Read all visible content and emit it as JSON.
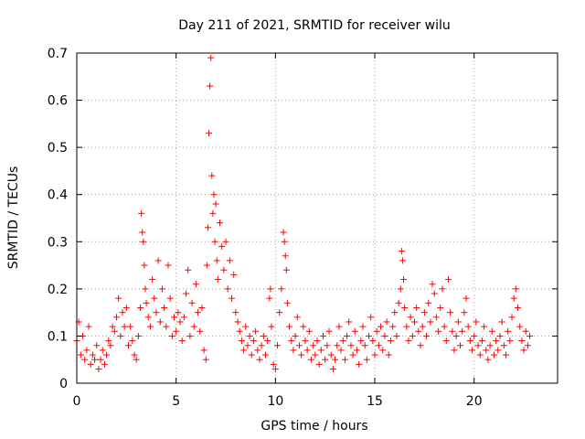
{
  "chart_data": {
    "type": "scatter",
    "title": "Day 211 of 2021, SRMTID for receiver wilu",
    "xlabel": "GPS time / hours",
    "ylabel": "SRMTID / TECUs",
    "xlim": [
      0,
      24.2
    ],
    "ylim": [
      0,
      0.7
    ],
    "xticks": [
      0,
      5,
      10,
      15,
      20
    ],
    "xtick_labels": [
      "0",
      "5",
      "10",
      "15",
      "20"
    ],
    "yticks": [
      0,
      0.1,
      0.2,
      0.3,
      0.4,
      0.5,
      0.6,
      0.7
    ],
    "ytick_labels": [
      "0",
      "0.1",
      "0.2",
      "0.3",
      "0.4",
      "0.5",
      "0.6",
      "0.7"
    ],
    "grid": true,
    "marker": "+",
    "color": "#ff0000",
    "series": [
      {
        "name": "SRMTID",
        "points": [
          [
            0.0,
            0.09
          ],
          [
            0.1,
            0.13
          ],
          [
            0.2,
            0.06
          ],
          [
            0.3,
            0.1
          ],
          [
            0.4,
            0.05
          ],
          [
            0.5,
            0.07
          ],
          [
            0.6,
            0.12
          ],
          [
            0.7,
            0.04
          ],
          [
            0.8,
            0.06
          ],
          [
            0.9,
            0.05
          ],
          [
            1.0,
            0.08
          ],
          [
            1.1,
            0.03
          ],
          [
            1.2,
            0.05
          ],
          [
            1.3,
            0.07
          ],
          [
            1.4,
            0.04
          ],
          [
            1.5,
            0.06
          ],
          [
            1.6,
            0.09
          ],
          [
            1.7,
            0.08
          ],
          [
            1.8,
            0.12
          ],
          [
            1.9,
            0.11
          ],
          [
            2.0,
            0.14
          ],
          [
            2.1,
            0.18
          ],
          [
            2.2,
            0.1
          ],
          [
            2.3,
            0.15
          ],
          [
            2.4,
            0.12
          ],
          [
            2.5,
            0.16
          ],
          [
            2.6,
            0.08
          ],
          [
            2.7,
            0.12
          ],
          [
            2.8,
            0.09
          ],
          [
            2.9,
            0.06
          ],
          [
            3.0,
            0.05
          ],
          [
            3.1,
            0.1
          ],
          [
            3.2,
            0.16
          ],
          [
            3.25,
            0.36
          ],
          [
            3.3,
            0.32
          ],
          [
            3.35,
            0.3
          ],
          [
            3.4,
            0.25
          ],
          [
            3.45,
            0.2
          ],
          [
            3.5,
            0.17
          ],
          [
            3.6,
            0.14
          ],
          [
            3.7,
            0.12
          ],
          [
            3.8,
            0.22
          ],
          [
            3.9,
            0.18
          ],
          [
            4.0,
            0.15
          ],
          [
            4.1,
            0.26
          ],
          [
            4.2,
            0.13
          ],
          [
            4.3,
            0.2
          ],
          [
            4.4,
            0.16
          ],
          [
            4.5,
            0.12
          ],
          [
            4.6,
            0.25
          ],
          [
            4.7,
            0.18
          ],
          [
            4.8,
            0.1
          ],
          [
            4.9,
            0.14
          ],
          [
            5.0,
            0.11
          ],
          [
            5.1,
            0.15
          ],
          [
            5.2,
            0.13
          ],
          [
            5.3,
            0.09
          ],
          [
            5.4,
            0.14
          ],
          [
            5.5,
            0.19
          ],
          [
            5.6,
            0.24
          ],
          [
            5.7,
            0.1
          ],
          [
            5.8,
            0.17
          ],
          [
            5.9,
            0.12
          ],
          [
            6.0,
            0.21
          ],
          [
            6.1,
            0.15
          ],
          [
            6.2,
            0.11
          ],
          [
            6.3,
            0.16
          ],
          [
            6.4,
            0.07
          ],
          [
            6.5,
            0.05
          ],
          [
            6.55,
            0.25
          ],
          [
            6.6,
            0.33
          ],
          [
            6.65,
            0.53
          ],
          [
            6.7,
            0.63
          ],
          [
            6.75,
            0.69
          ],
          [
            6.8,
            0.44
          ],
          [
            6.85,
            0.36
          ],
          [
            6.9,
            0.4
          ],
          [
            6.95,
            0.3
          ],
          [
            7.0,
            0.38
          ],
          [
            7.05,
            0.26
          ],
          [
            7.1,
            0.22
          ],
          [
            7.2,
            0.34
          ],
          [
            7.3,
            0.29
          ],
          [
            7.4,
            0.24
          ],
          [
            7.5,
            0.3
          ],
          [
            7.6,
            0.2
          ],
          [
            7.7,
            0.26
          ],
          [
            7.8,
            0.18
          ],
          [
            7.9,
            0.23
          ],
          [
            8.0,
            0.15
          ],
          [
            8.1,
            0.13
          ],
          [
            8.2,
            0.11
          ],
          [
            8.3,
            0.09
          ],
          [
            8.4,
            0.07
          ],
          [
            8.5,
            0.12
          ],
          [
            8.6,
            0.08
          ],
          [
            8.7,
            0.1
          ],
          [
            8.8,
            0.06
          ],
          [
            8.9,
            0.09
          ],
          [
            9.0,
            0.11
          ],
          [
            9.1,
            0.07
          ],
          [
            9.2,
            0.05
          ],
          [
            9.3,
            0.08
          ],
          [
            9.4,
            0.1
          ],
          [
            9.5,
            0.06
          ],
          [
            9.6,
            0.09
          ],
          [
            9.7,
            0.18
          ],
          [
            9.75,
            0.2
          ],
          [
            9.8,
            0.12
          ],
          [
            9.9,
            0.04
          ],
          [
            10.0,
            0.03
          ],
          [
            10.1,
            0.08
          ],
          [
            10.2,
            0.15
          ],
          [
            10.3,
            0.2
          ],
          [
            10.4,
            0.32
          ],
          [
            10.45,
            0.3
          ],
          [
            10.5,
            0.27
          ],
          [
            10.55,
            0.24
          ],
          [
            10.6,
            0.17
          ],
          [
            10.7,
            0.12
          ],
          [
            10.8,
            0.09
          ],
          [
            10.9,
            0.07
          ],
          [
            11.0,
            0.1
          ],
          [
            11.1,
            0.14
          ],
          [
            11.2,
            0.08
          ],
          [
            11.3,
            0.06
          ],
          [
            11.4,
            0.12
          ],
          [
            11.5,
            0.09
          ],
          [
            11.6,
            0.07
          ],
          [
            11.7,
            0.11
          ],
          [
            11.8,
            0.05
          ],
          [
            11.9,
            0.08
          ],
          [
            12.0,
            0.06
          ],
          [
            12.1,
            0.09
          ],
          [
            12.2,
            0.04
          ],
          [
            12.3,
            0.07
          ],
          [
            12.4,
            0.1
          ],
          [
            12.5,
            0.05
          ],
          [
            12.6,
            0.08
          ],
          [
            12.7,
            0.11
          ],
          [
            12.8,
            0.06
          ],
          [
            12.9,
            0.03
          ],
          [
            13.0,
            0.05
          ],
          [
            13.1,
            0.08
          ],
          [
            13.2,
            0.12
          ],
          [
            13.3,
            0.07
          ],
          [
            13.4,
            0.09
          ],
          [
            13.5,
            0.05
          ],
          [
            13.6,
            0.1
          ],
          [
            13.7,
            0.13
          ],
          [
            13.8,
            0.08
          ],
          [
            13.9,
            0.06
          ],
          [
            14.0,
            0.11
          ],
          [
            14.1,
            0.07
          ],
          [
            14.2,
            0.04
          ],
          [
            14.3,
            0.09
          ],
          [
            14.4,
            0.12
          ],
          [
            14.5,
            0.08
          ],
          [
            14.6,
            0.05
          ],
          [
            14.7,
            0.1
          ],
          [
            14.8,
            0.14
          ],
          [
            14.9,
            0.09
          ],
          [
            15.0,
            0.06
          ],
          [
            15.1,
            0.11
          ],
          [
            15.2,
            0.08
          ],
          [
            15.3,
            0.12
          ],
          [
            15.4,
            0.07
          ],
          [
            15.5,
            0.1
          ],
          [
            15.6,
            0.13
          ],
          [
            15.7,
            0.06
          ],
          [
            15.8,
            0.09
          ],
          [
            15.9,
            0.12
          ],
          [
            16.0,
            0.15
          ],
          [
            16.1,
            0.1
          ],
          [
            16.2,
            0.17
          ],
          [
            16.3,
            0.2
          ],
          [
            16.35,
            0.28
          ],
          [
            16.4,
            0.26
          ],
          [
            16.45,
            0.22
          ],
          [
            16.5,
            0.16
          ],
          [
            16.6,
            0.12
          ],
          [
            16.7,
            0.09
          ],
          [
            16.8,
            0.14
          ],
          [
            16.9,
            0.1
          ],
          [
            17.0,
            0.13
          ],
          [
            17.1,
            0.16
          ],
          [
            17.2,
            0.11
          ],
          [
            17.3,
            0.08
          ],
          [
            17.4,
            0.12
          ],
          [
            17.5,
            0.15
          ],
          [
            17.6,
            0.1
          ],
          [
            17.7,
            0.17
          ],
          [
            17.8,
            0.13
          ],
          [
            17.9,
            0.21
          ],
          [
            18.0,
            0.19
          ],
          [
            18.1,
            0.14
          ],
          [
            18.2,
            0.11
          ],
          [
            18.3,
            0.16
          ],
          [
            18.4,
            0.2
          ],
          [
            18.5,
            0.12
          ],
          [
            18.6,
            0.09
          ],
          [
            18.7,
            0.22
          ],
          [
            18.8,
            0.15
          ],
          [
            18.9,
            0.11
          ],
          [
            19.0,
            0.07
          ],
          [
            19.1,
            0.1
          ],
          [
            19.2,
            0.13
          ],
          [
            19.3,
            0.08
          ],
          [
            19.4,
            0.11
          ],
          [
            19.5,
            0.15
          ],
          [
            19.6,
            0.18
          ],
          [
            19.7,
            0.12
          ],
          [
            19.8,
            0.09
          ],
          [
            19.9,
            0.07
          ],
          [
            20.0,
            0.1
          ],
          [
            20.1,
            0.13
          ],
          [
            20.2,
            0.08
          ],
          [
            20.3,
            0.06
          ],
          [
            20.4,
            0.09
          ],
          [
            20.5,
            0.12
          ],
          [
            20.6,
            0.07
          ],
          [
            20.7,
            0.05
          ],
          [
            20.8,
            0.08
          ],
          [
            20.9,
            0.11
          ],
          [
            21.0,
            0.06
          ],
          [
            21.1,
            0.09
          ],
          [
            21.2,
            0.07
          ],
          [
            21.3,
            0.1
          ],
          [
            21.4,
            0.13
          ],
          [
            21.5,
            0.08
          ],
          [
            21.6,
            0.06
          ],
          [
            21.7,
            0.11
          ],
          [
            21.8,
            0.09
          ],
          [
            21.9,
            0.14
          ],
          [
            22.0,
            0.18
          ],
          [
            22.1,
            0.2
          ],
          [
            22.2,
            0.16
          ],
          [
            22.3,
            0.12
          ],
          [
            22.4,
            0.09
          ],
          [
            22.5,
            0.07
          ],
          [
            22.6,
            0.11
          ],
          [
            22.7,
            0.08
          ],
          [
            22.8,
            0.1
          ]
        ]
      }
    ]
  }
}
